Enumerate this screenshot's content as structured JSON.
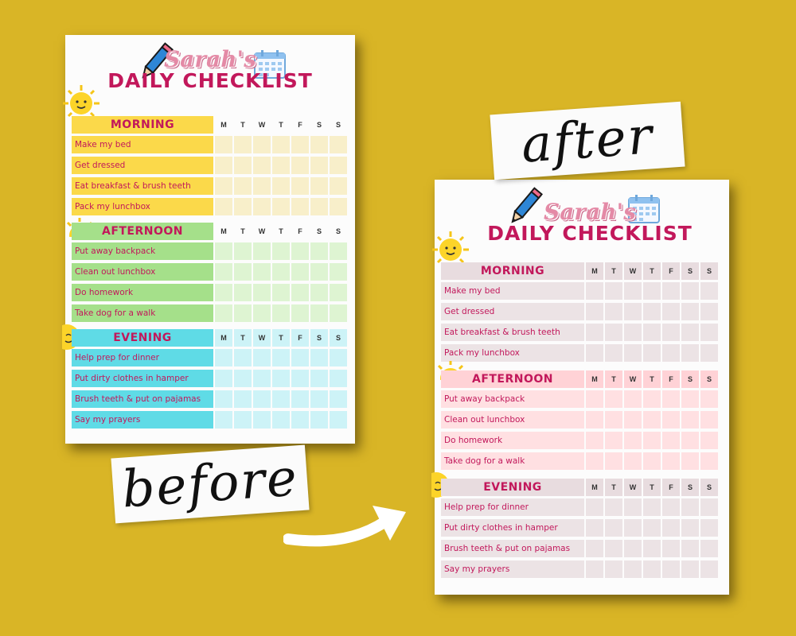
{
  "labels": {
    "before": "before",
    "after": "after"
  },
  "chart_before": {
    "name": "Sarah's",
    "title": "DAILY CHECKLIST",
    "days": [
      "M",
      "T",
      "W",
      "T",
      "F",
      "S",
      "S"
    ],
    "sections": [
      {
        "title": "MORNING",
        "tasks": [
          "Make my bed",
          "Get dressed",
          "Eat breakfast & brush teeth",
          "Pack my lunchbox"
        ]
      },
      {
        "title": "AFTERNOON",
        "tasks": [
          "Put away backpack",
          "Clean out lunchbox",
          "Do homework",
          "Take dog for a walk"
        ]
      },
      {
        "title": "EVENING",
        "tasks": [
          "Help prep for dinner",
          "Put dirty clothes in hamper",
          "Brush teeth & put on pajamas",
          "Say my prayers"
        ]
      }
    ]
  },
  "chart_after": {
    "name": "Sarah's",
    "title": "DAILY CHECKLIST",
    "days": [
      "M",
      "T",
      "W",
      "T",
      "F",
      "S",
      "S"
    ],
    "sections": [
      {
        "title": "MORNING",
        "tasks": [
          "Make my bed",
          "Get dressed",
          "Eat breakfast & brush teeth",
          "Pack my lunchbox"
        ]
      },
      {
        "title": "AFTERNOON",
        "tasks": [
          "Put away backpack",
          "Clean out lunchbox",
          "Do homework",
          "Take dog for a walk"
        ]
      },
      {
        "title": "EVENING",
        "tasks": [
          "Help prep for dinner",
          "Put dirty clothes in hamper",
          "Brush teeth & put on pajamas",
          "Say my prayers"
        ]
      }
    ]
  },
  "colors": {
    "background": "#d9b526",
    "title_pink": "#c2185b",
    "before_morning_head": "#fbd94a",
    "before_morning_cell": "#f8efca",
    "before_afternoon_head": "#a5e08a",
    "before_afternoon_cell": "#def4d2",
    "before_evening_head": "#5fdbe6",
    "before_evening_cell": "#cdf3f7",
    "after_morning_head": "#e8dcdf",
    "after_morning_cell": "#ece3e5",
    "after_afternoon_head": "#ffd2d6",
    "after_afternoon_cell": "#ffe0e2",
    "after_evening_head": "#e8dcdf",
    "after_evening_cell": "#ece3e5"
  },
  "icons": [
    "pencil-icon",
    "calendar-icon",
    "sun-icon",
    "arrow-icon"
  ]
}
